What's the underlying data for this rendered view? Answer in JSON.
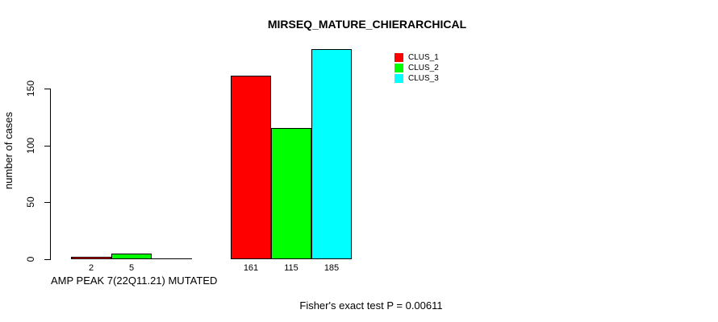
{
  "chart_data": {
    "type": "bar",
    "title": "MIRSEQ_MATURE_CHIERARCHICAL",
    "ylabel": "number of cases",
    "xlabel": "AMP PEAK 7(22Q11.21) MUTATED",
    "annotation": "Fisher's exact test P = 0.00611",
    "ylim": [
      0,
      150
    ],
    "yticks": [
      0,
      50,
      100,
      150
    ],
    "grid": false,
    "legend_position": "top-right",
    "categories": [
      "AMP PEAK 7(22Q11.21) MUTATED",
      ""
    ],
    "series": [
      {
        "name": "CLUS_1",
        "color": "#ff0000",
        "values": [
          2,
          161
        ]
      },
      {
        "name": "CLUS_2",
        "color": "#00ff00",
        "values": [
          5,
          115
        ]
      },
      {
        "name": "CLUS_3",
        "color": "#00ffff",
        "values": [
          0,
          185
        ]
      }
    ],
    "bar_value_labels": [
      [
        "2",
        "5",
        ""
      ],
      [
        "161",
        "115",
        "185"
      ]
    ]
  }
}
